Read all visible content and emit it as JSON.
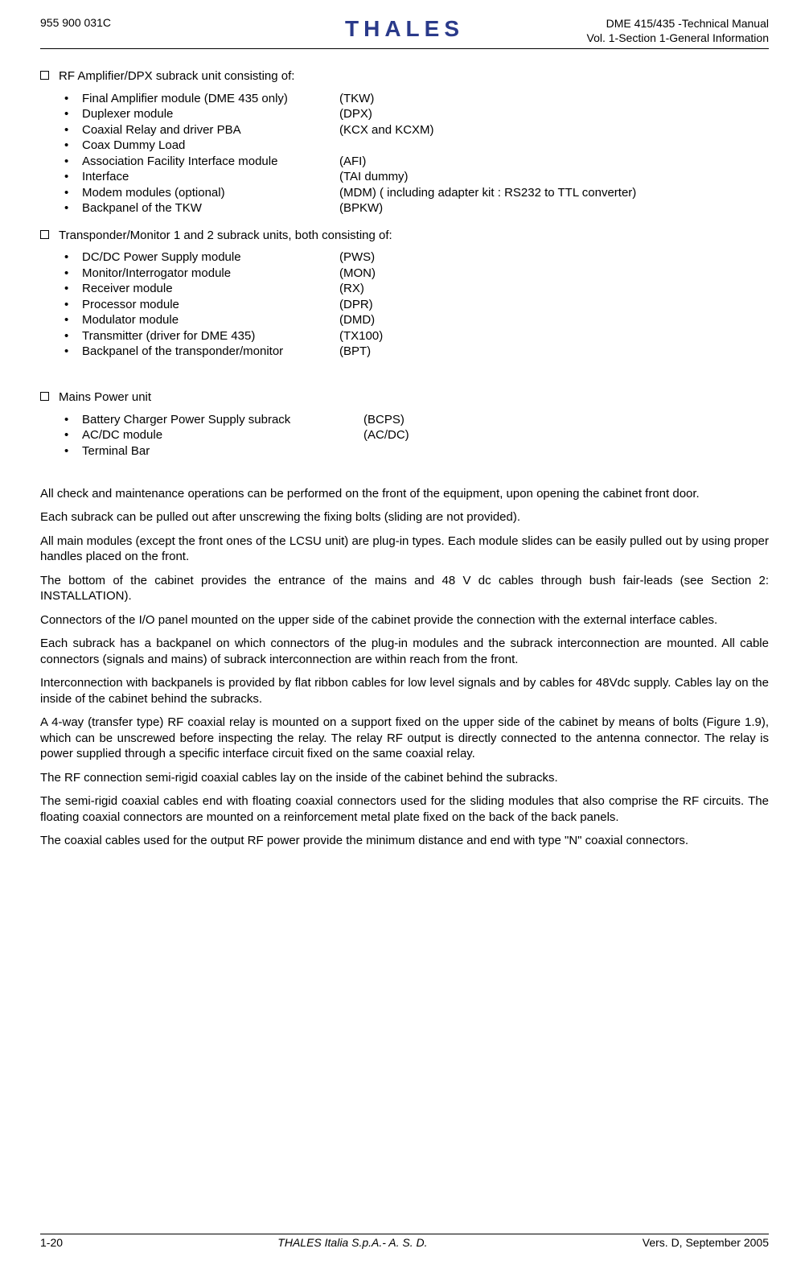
{
  "header": {
    "left": "955 900 031C",
    "brand": "THALES",
    "right_line1": "DME 415/435 -Technical Manual",
    "right_line2": "Vol. 1-Section 1-General Information"
  },
  "sections": {
    "rf_amp": {
      "title": "RF Amplifier/DPX subrack unit consisting of:",
      "items": [
        {
          "name": "Final Amplifier module (DME 435 only)",
          "code": "(TKW)"
        },
        {
          "name": "Duplexer module",
          "code": "(DPX)"
        },
        {
          "name": "Coaxial Relay and driver PBA",
          "code": "(KCX and KCXM)"
        },
        {
          "name": "Coax Dummy Load",
          "code": ""
        },
        {
          "name": "Association Facility Interface module",
          "code": "(AFI)"
        },
        {
          "name": "Interface",
          "code": "(TAI dummy)"
        },
        {
          "name": "Modem modules (optional)",
          "code": "(MDM) ( including adapter kit : RS232 to TTL converter)"
        },
        {
          "name": "Backpanel of the TKW",
          "code": "(BPKW)"
        }
      ]
    },
    "transponder": {
      "title": "Transponder/Monitor 1 and 2 subrack units, both consisting of:",
      "items": [
        {
          "name": "DC/DC Power Supply module",
          "code": "(PWS)"
        },
        {
          "name": "Monitor/Interrogator module",
          "code": "(MON)"
        },
        {
          "name": "Receiver  module",
          "code": "(RX)"
        },
        {
          "name": "Processor  module",
          "code": "(DPR)"
        },
        {
          "name": "Modulator module",
          "code": "(DMD)"
        },
        {
          "name": "Transmitter (driver for DME 435)",
          "code": "(TX100)"
        },
        {
          "name": "Backpanel of the transponder/monitor",
          "code": "(BPT)"
        }
      ]
    },
    "mains": {
      "title": "Mains Power unit",
      "items": [
        {
          "name": "Battery Charger Power Supply subrack",
          "code": "(BCPS)"
        },
        {
          "name": "AC/DC module",
          "code": "(AC/DC)"
        },
        {
          "name": "Terminal Bar",
          "code": ""
        }
      ]
    }
  },
  "paras": {
    "p1": "All check and maintenance operations can be performed on the front of the equipment, upon opening the cabinet front door.",
    "p2": "Each subrack can be pulled out after unscrewing the fixing bolts (sliding are not provided).",
    "p3": "All main modules (except the front ones of the LCSU unit) are plug-in types. Each module slides can be easily pulled out by using proper handles placed on the front.",
    "p4": "The bottom of the cabinet provides the entrance of the mains and 48 V dc cables through bush fair-leads (see Section 2: INSTALLATION).",
    "p5": "Connectors of the I/O panel mounted on the upper side of the cabinet provide the connection with the external interface cables.",
    "p6": "Each subrack has a backpanel on which connectors of the plug-in modules and the subrack interconnection are mounted. All cable connectors (signals and mains) of subrack interconnection are within reach from the front.",
    "p7": "Interconnection with backpanels is provided by flat ribbon cables for low level signals and by cables for 48Vdc supply. Cables lay on the inside of the cabinet behind the subracks.",
    "p8": "A 4-way (transfer type) RF coaxial relay is mounted on a support fixed on the upper side of the cabinet by means of bolts (Figure 1.9), which can be unscrewed before inspecting the relay. The relay RF output is directly connected to the antenna connector. The relay is power supplied through a specific interface circuit fixed on the same coaxial relay.",
    "p9": "The RF connection semi-rigid coaxial cables lay on the inside of the cabinet behind the subracks.",
    "p10": "The semi-rigid coaxial cables end with floating coaxial connectors used for the sliding modules that also comprise the RF circuits. The floating coaxial connectors are mounted on a reinforcement metal plate fixed on the back of the back panels.",
    "p11": "The coaxial cables used for the output RF power provide the minimum distance and end with type \"N\" coaxial connectors."
  },
  "footer": {
    "left": "1-20",
    "center": "THALES Italia S.p.A.- A. S. D.",
    "right": "Vers. D, September 2005"
  }
}
